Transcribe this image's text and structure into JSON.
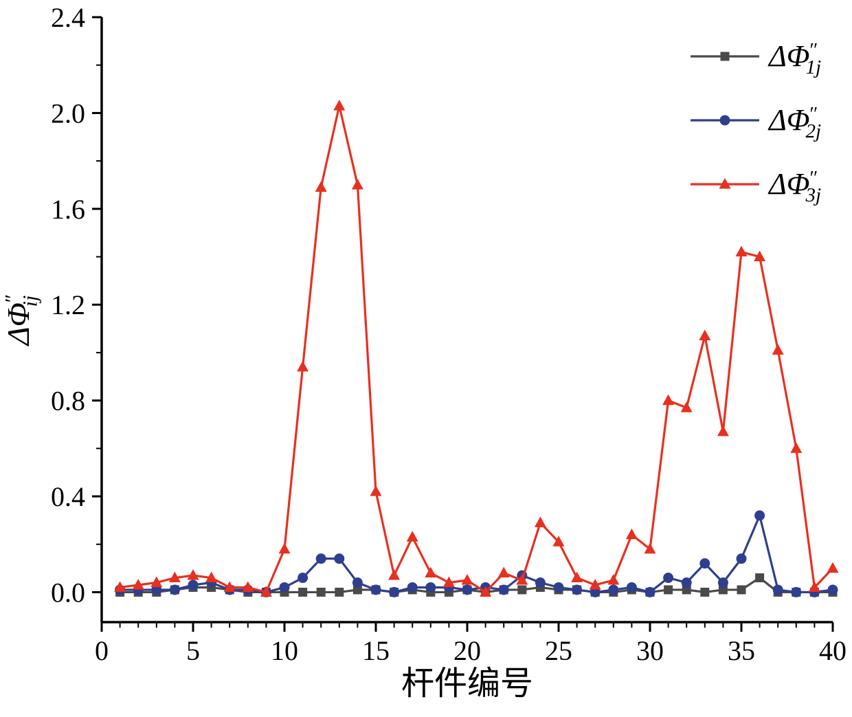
{
  "figure": {
    "background": "#ffffff",
    "axis_color": "#000000"
  },
  "chart_data": {
    "type": "line",
    "title": "",
    "xlabel": "杆件编号",
    "ylabel": {
      "prefix": "ΔΦ",
      "sup": "″",
      "sub": "ij",
      "combined": "ΔΦ″ij"
    },
    "xlim": [
      0,
      40
    ],
    "ylim": [
      0,
      2.4
    ],
    "grid": false,
    "legend_position": "top-right",
    "x_ticks": {
      "major": [
        0,
        5,
        10,
        15,
        20,
        25,
        30,
        35,
        40
      ],
      "labels": [
        "0",
        "5",
        "10",
        "15",
        "20",
        "25",
        "30",
        "35",
        "40"
      ],
      "minor_step": 1
    },
    "y_ticks": {
      "major": [
        0.0,
        0.4,
        0.8,
        1.2,
        1.6,
        2.0,
        2.4
      ],
      "labels": [
        "0.0",
        "0.4",
        "0.8",
        "1.2",
        "1.6",
        "2.0",
        "2.4"
      ],
      "minor_step": 0.2
    },
    "x": [
      1,
      2,
      3,
      4,
      5,
      6,
      7,
      8,
      9,
      10,
      11,
      12,
      13,
      14,
      15,
      16,
      17,
      18,
      19,
      20,
      21,
      22,
      23,
      24,
      25,
      26,
      27,
      28,
      29,
      30,
      31,
      32,
      33,
      34,
      35,
      36,
      37,
      38,
      39,
      40
    ],
    "series": [
      {
        "name": {
          "prefix": "ΔΦ",
          "sup": "″",
          "sub": "1j",
          "combined": "ΔΦ″1j"
        },
        "marker": "square",
        "color": "#4a4a4a",
        "values": [
          0.0,
          0.0,
          0.0,
          0.01,
          0.02,
          0.02,
          0.01,
          0.0,
          0.0,
          0.0,
          0.0,
          0.0,
          0.0,
          0.01,
          0.01,
          0.0,
          0.01,
          0.0,
          0.0,
          0.01,
          0.0,
          0.01,
          0.01,
          0.02,
          0.01,
          0.01,
          0.0,
          0.0,
          0.01,
          0.0,
          0.01,
          0.01,
          0.0,
          0.01,
          0.01,
          0.06,
          0.0,
          0.0,
          0.0,
          0.0
        ]
      },
      {
        "name": {
          "prefix": "ΔΦ",
          "sup": "″",
          "sub": "2j",
          "combined": "ΔΦ″2j"
        },
        "marker": "circle",
        "color": "#2f3f8f",
        "values": [
          0.01,
          0.01,
          0.01,
          0.01,
          0.03,
          0.04,
          0.01,
          0.01,
          0.0,
          0.02,
          0.06,
          0.14,
          0.14,
          0.04,
          0.01,
          0.0,
          0.02,
          0.02,
          0.02,
          0.01,
          0.02,
          0.01,
          0.07,
          0.04,
          0.02,
          0.01,
          0.0,
          0.01,
          0.02,
          0.0,
          0.06,
          0.04,
          0.12,
          0.04,
          0.14,
          0.32,
          0.01,
          0.0,
          0.0,
          0.01
        ]
      },
      {
        "name": {
          "prefix": "ΔΦ",
          "sup": "″",
          "sub": "3j",
          "combined": "ΔΦ″3j"
        },
        "marker": "triangle-up",
        "color": "#e8301f",
        "values": [
          0.02,
          0.03,
          0.04,
          0.06,
          0.07,
          0.06,
          0.02,
          0.02,
          0.0,
          0.18,
          0.94,
          1.69,
          2.03,
          1.7,
          0.42,
          0.07,
          0.23,
          0.08,
          0.04,
          0.05,
          0.0,
          0.08,
          0.05,
          0.29,
          0.21,
          0.06,
          0.03,
          0.05,
          0.24,
          0.18,
          0.8,
          0.77,
          1.07,
          0.67,
          1.42,
          1.4,
          1.01,
          0.6,
          0.02,
          0.1
        ]
      }
    ]
  }
}
